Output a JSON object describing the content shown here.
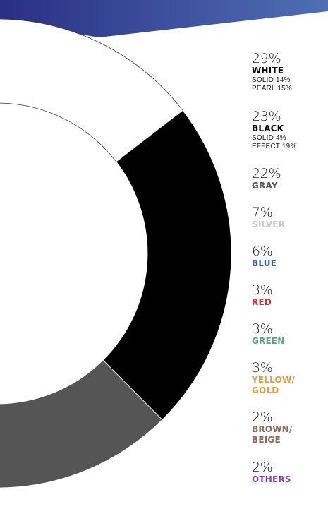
{
  "chart_data": {
    "type": "pie",
    "style": "donut",
    "slices": [
      {
        "name": "WHITE",
        "value": 29,
        "percent_label": "29%",
        "color": "#ffffff",
        "sub": [
          "SOLID 14%",
          "PEARL 15%"
        ]
      },
      {
        "name": "BLACK",
        "value": 23,
        "percent_label": "23%",
        "color": "#000000",
        "sub": [
          "SOLID 4%",
          "EFFECT 19%"
        ]
      },
      {
        "name": "GRAY",
        "value": 22,
        "percent_label": "22%",
        "color": "#555556",
        "sub": []
      },
      {
        "name": "SILVER",
        "value": 7,
        "percent_label": "7%",
        "color": "#c8c8ca",
        "sub": []
      },
      {
        "name": "BLUE",
        "value": 6,
        "percent_label": "6%",
        "color": "#3a5ea8",
        "sub": []
      },
      {
        "name": "RED",
        "value": 3,
        "percent_label": "3%",
        "color": "#c9323b",
        "sub": []
      },
      {
        "name": "GREEN",
        "value": 3,
        "percent_label": "3%",
        "color": "#5aa682",
        "sub": []
      },
      {
        "name": "YELLOW/\nGOLD",
        "value": 3,
        "percent_label": "3%",
        "color": "#e29a3f",
        "sub": []
      },
      {
        "name": "BROWN/\nBEIGE",
        "value": 2,
        "percent_label": "2%",
        "color": "#8a6b57",
        "sub": []
      },
      {
        "name": "OTHERS",
        "value": 2,
        "percent_label": "2%",
        "color": "#7a3fb7",
        "sub": []
      }
    ],
    "label_colors": [
      "#000000",
      "#000000",
      "#555556",
      "#c8c8ca",
      "#3a5ea8",
      "#c9323b",
      "#5aa682",
      "#e29a3f",
      "#8a6b57",
      "#7a3fb7"
    ],
    "header_gradient": [
      "#2a2f86",
      "#4f6fb3"
    ]
  }
}
